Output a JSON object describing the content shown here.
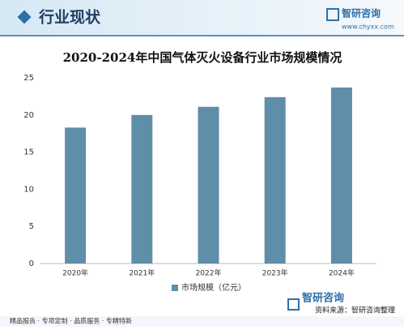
{
  "header": {
    "title": "行业现状",
    "brand": "智研咨询",
    "url": "www.chyxx.com"
  },
  "chart_data": {
    "type": "bar",
    "title": "2020-2024年中国气体灭火设备行业市场规模情况",
    "categories": [
      "2020年",
      "2021年",
      "2022年",
      "2023年",
      "2024年"
    ],
    "series": [
      {
        "name": "市场规模（亿元）",
        "color": "#5f8ea8",
        "values": [
          18.3,
          20.0,
          21.1,
          22.4,
          23.7
        ]
      }
    ],
    "ylim": [
      0,
      25
    ],
    "yticks": [
      0,
      5,
      10,
      15,
      20,
      25
    ],
    "grid": false,
    "legend": "bottom"
  },
  "footer": {
    "source": "资料来源：智研咨询整理",
    "slogan": "精品报告 · 专项定制 · 品质服务 · 专精特新"
  }
}
